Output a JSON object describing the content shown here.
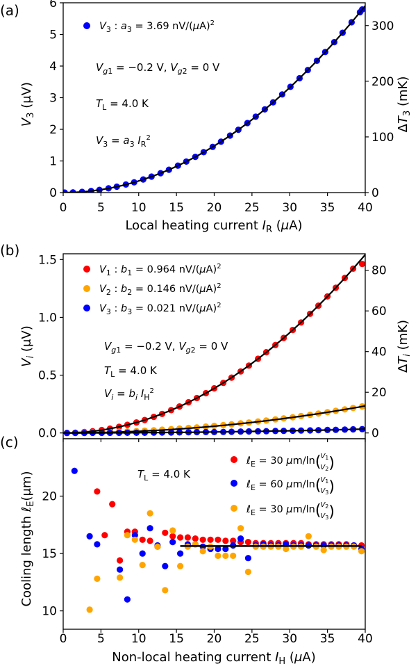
{
  "chart_data": [
    {
      "panel": "(a)",
      "type": "scatter",
      "xlabel": "Local heating current I_R (μA)",
      "ylabel": "V_3 (μV)",
      "ylabel_right": "ΔT_3 (mK)",
      "xlim": [
        0,
        40
      ],
      "ylim": [
        0,
        6
      ],
      "y2lim": [
        0,
        340.9
      ],
      "xticks": [
        "0",
        "5",
        "10",
        "15",
        "20",
        "25",
        "30",
        "35",
        "40"
      ],
      "yticks": [
        "0",
        "1",
        "2",
        "3",
        "4",
        "5",
        "6"
      ],
      "y2ticks": [
        "0",
        "100",
        "200",
        "300"
      ],
      "grid": false,
      "legend_position": "top-left",
      "series": [
        {
          "name": "V3 : a3 = 3.69 nV/(μA)²",
          "color": "#0000ff",
          "kind": "points",
          "x": [
            0.2,
            1.3,
            2.5,
            3.7,
            4.8,
            6.0,
            7.1,
            8.3,
            9.4,
            10.6,
            11.7,
            12.9,
            14.0,
            15.2,
            16.3,
            17.5,
            18.6,
            19.8,
            20.9,
            22.1,
            23.2,
            24.4,
            25.5,
            26.7,
            27.8,
            29.0,
            30.1,
            31.3,
            32.4,
            33.6,
            34.7,
            35.9,
            37.0,
            38.2,
            39.3,
            39.6
          ],
          "y": [
            0.0,
            0.006,
            0.023,
            0.05,
            0.085,
            0.133,
            0.186,
            0.254,
            0.326,
            0.415,
            0.505,
            0.614,
            0.723,
            0.852,
            0.98,
            1.13,
            1.276,
            1.447,
            1.612,
            1.802,
            1.986,
            2.197,
            2.4,
            2.631,
            2.852,
            3.104,
            3.343,
            3.615,
            3.874,
            4.166,
            4.443,
            4.755,
            5.052,
            5.385,
            5.7,
            5.79
          ]
        },
        {
          "name": "fit",
          "color": "#000000",
          "kind": "line",
          "formula": "a*x^2",
          "coef": 0.00369
        }
      ],
      "annotations": [
        "V_g1 = −0.2 V, V_g2 = 0 V",
        "T_L = 4.0 K",
        "V_3 = a_3 I_R²"
      ]
    },
    {
      "panel": "(b)",
      "type": "scatter",
      "xlabel": "",
      "ylabel": "V_i (μV)",
      "ylabel_right": "ΔT_i (mK)",
      "xlim": [
        0,
        40
      ],
      "ylim": [
        -0.05,
        1.55
      ],
      "y2lim": [
        -2.84,
        88.1
      ],
      "yticks": [
        "0.0",
        "0.5",
        "1.0",
        "1.5"
      ],
      "y2ticks": [
        "0",
        "20",
        "40",
        "60",
        "80"
      ],
      "grid": false,
      "legend_position": "top-left",
      "series": [
        {
          "name": "V1 : b1 = 0.964 nV/(μA)²",
          "color": "#ff0000",
          "kind": "points",
          "x": [
            0.5,
            1.6,
            2.8,
            3.9,
            5.1,
            6.2,
            7.4,
            8.5,
            9.7,
            10.8,
            12.0,
            13.1,
            14.3,
            15.4,
            16.6,
            17.7,
            18.9,
            20.0,
            21.2,
            22.3,
            23.5,
            24.6,
            25.8,
            26.9,
            28.1,
            29.2,
            30.4,
            31.5,
            32.7,
            33.8,
            35.0,
            36.1,
            37.3,
            38.4,
            39.6
          ],
          "y": [
            0.0,
            0.002,
            0.008,
            0.015,
            0.025,
            0.037,
            0.053,
            0.07,
            0.091,
            0.112,
            0.139,
            0.165,
            0.197,
            0.229,
            0.266,
            0.302,
            0.344,
            0.386,
            0.433,
            0.479,
            0.532,
            0.583,
            0.642,
            0.698,
            0.761,
            0.822,
            0.891,
            0.956,
            1.031,
            1.101,
            1.181,
            1.256,
            1.341,
            1.421,
            1.462
          ]
        },
        {
          "name": "V2 : b2 = 0.146 nV/(μA)²",
          "color": "#ffa500",
          "kind": "points",
          "x": [
            0.5,
            1.6,
            2.8,
            3.9,
            5.1,
            6.2,
            7.4,
            8.5,
            9.7,
            10.8,
            12.0,
            13.1,
            14.3,
            15.4,
            16.6,
            17.7,
            18.9,
            20.0,
            21.2,
            22.3,
            23.5,
            24.6,
            25.8,
            26.9,
            28.1,
            29.2,
            30.4,
            31.5,
            32.7,
            33.8,
            35.0,
            36.1,
            37.3,
            38.4,
            39.6
          ],
          "y": [
            0.0,
            0.002,
            0.003,
            0.004,
            0.006,
            0.009,
            0.011,
            0.013,
            0.016,
            0.019,
            0.023,
            0.028,
            0.033,
            0.038,
            0.043,
            0.048,
            0.055,
            0.061,
            0.068,
            0.075,
            0.083,
            0.09,
            0.099,
            0.107,
            0.117,
            0.126,
            0.136,
            0.146,
            0.157,
            0.168,
            0.18,
            0.191,
            0.204,
            0.216,
            0.23
          ]
        },
        {
          "name": "V3 : b3 = 0.021 nV/(μA)²",
          "color": "#0000ff",
          "kind": "points",
          "x": [
            0.5,
            1.6,
            2.8,
            3.9,
            5.1,
            6.2,
            7.4,
            8.5,
            9.7,
            10.8,
            12.0,
            13.1,
            14.3,
            15.4,
            16.6,
            17.7,
            18.9,
            20.0,
            21.2,
            22.3,
            23.5,
            24.6,
            25.8,
            26.9,
            28.1,
            29.2,
            30.4,
            31.5,
            32.7,
            33.8,
            35.0,
            36.1,
            37.3,
            38.4,
            39.6
          ],
          "y": [
            0.0,
            0.0,
            0.0,
            0.001,
            0.001,
            0.001,
            0.001,
            0.002,
            0.002,
            0.002,
            0.003,
            0.004,
            0.004,
            0.005,
            0.006,
            0.007,
            0.008,
            0.008,
            0.009,
            0.01,
            0.012,
            0.013,
            0.014,
            0.015,
            0.017,
            0.018,
            0.019,
            0.021,
            0.022,
            0.024,
            0.026,
            0.027,
            0.029,
            0.031,
            0.033
          ]
        },
        {
          "name": "fit1",
          "color": "#000000",
          "kind": "line",
          "formula": "b*x^2",
          "coef": 0.000964
        },
        {
          "name": "fit2",
          "color": "#000000",
          "kind": "line",
          "formula": "b*x^2",
          "coef": 0.000146
        },
        {
          "name": "fit3",
          "color": "#000000",
          "kind": "line",
          "formula": "b*x^2",
          "coef": 2.1e-05
        }
      ],
      "annotations": [
        "V_g1 = −0.2 V, V_g2 = 0 V",
        "T_L = 4.0 K",
        "V_i = b_i I_H²"
      ]
    },
    {
      "panel": "(c)",
      "type": "scatter",
      "xlabel": "Non-local heating current I_H (μA)",
      "ylabel": "Cooling length ℓ_E (μm)",
      "xlim": [
        0,
        40
      ],
      "ylim": [
        8.4,
        25
      ],
      "xticks": [
        "0",
        "5",
        "10",
        "15",
        "20",
        "25",
        "30",
        "35",
        "40"
      ],
      "yticks": [
        "10",
        "15",
        "20"
      ],
      "grid": false,
      "legend_position": "top-right",
      "series": [
        {
          "name": "ℓE = 30 μm/ln(V1/V2)",
          "color": "#ff0000",
          "kind": "points",
          "x": [
            4.5,
            5.5,
            6.5,
            7.5,
            8.5,
            9.5,
            10.5,
            11.5,
            12.5,
            13.5,
            14.5,
            15.5,
            16.5,
            17.5,
            18.5,
            19.5,
            20.5,
            21.5,
            22.5,
            23.5,
            24.5,
            25.5,
            26.5,
            27.5,
            28.5,
            29.5,
            30.5,
            31.5,
            32.5,
            33.5,
            34.5,
            35.5,
            36.5,
            37.5,
            38.5,
            39.5
          ],
          "y": [
            20.4,
            16.6,
            19.3,
            14.4,
            16.9,
            16.9,
            16.2,
            16.1,
            15.6,
            16.8,
            16.5,
            16.4,
            16.4,
            16.3,
            16.2,
            16.2,
            16.2,
            16.1,
            16.1,
            16.0,
            16.0,
            15.9,
            15.9,
            15.9,
            15.9,
            15.9,
            15.9,
            15.9,
            15.8,
            15.8,
            15.8,
            15.8,
            15.8,
            15.8,
            15.7,
            15.7
          ]
        },
        {
          "name": "ℓE = 60 μm/ln(V1/V3)",
          "color": "#0000ff",
          "kind": "points",
          "x": [
            1.5,
            3.5,
            4.5,
            7.5,
            8.5,
            9.5,
            10.5,
            11.5,
            12.5,
            13.5,
            14.5,
            15.5,
            16.5,
            17.5,
            18.5,
            19.5,
            20.5,
            21.5,
            22.5,
            23.5,
            24.5,
            25.5,
            26.5,
            27.5,
            28.5,
            29.5,
            30.5,
            31.5,
            32.5,
            33.5,
            34.5,
            35.5,
            36.5,
            37.5,
            38.5,
            39.5
          ],
          "y": [
            22.2,
            16.5,
            15.8,
            13.6,
            11.0,
            16.6,
            15.0,
            17.2,
            15.7,
            13.9,
            16.0,
            15.0,
            15.8,
            15.8,
            15.6,
            15.4,
            15.4,
            15.4,
            15.7,
            16.3,
            14.6,
            15.7,
            15.8,
            15.7,
            15.7,
            15.8,
            15.7,
            15.7,
            15.7,
            15.7,
            15.7,
            15.7,
            15.7,
            15.7,
            15.7,
            15.4
          ]
        },
        {
          "name": "ℓE = 30 μm/ln(V2/V3)",
          "color": "#ffa500",
          "kind": "points",
          "x": [
            3.5,
            4.5,
            7.5,
            8.5,
            9.5,
            10.5,
            11.5,
            12.5,
            13.5,
            14.5,
            15.5,
            16.5,
            17.5,
            18.5,
            19.5,
            20.5,
            21.5,
            22.5,
            23.5,
            24.5,
            25.5,
            26.5,
            27.5,
            28.5,
            29.5,
            30.5,
            31.5,
            32.5,
            33.5,
            34.5,
            35.5,
            36.5,
            37.5,
            38.5,
            39.5
          ],
          "y": [
            10.1,
            12.8,
            12.9,
            16.6,
            16.2,
            14.0,
            18.5,
            15.6,
            11.8,
            17.0,
            13.9,
            15.6,
            15.8,
            15.2,
            15.6,
            14.8,
            14.8,
            14.8,
            17.2,
            13.4,
            15.6,
            15.6,
            15.6,
            15.6,
            15.4,
            15.6,
            15.6,
            16.5,
            15.6,
            15.3,
            15.6,
            15.6,
            15.6,
            15.6,
            15.2
          ]
        },
        {
          "name": "fit",
          "color": "#000000",
          "kind": "hline",
          "value": 15.65,
          "x_from": 15.5,
          "x_to": 39.5
        }
      ],
      "annotations": [
        "T_L = 4.0 K"
      ]
    }
  ]
}
